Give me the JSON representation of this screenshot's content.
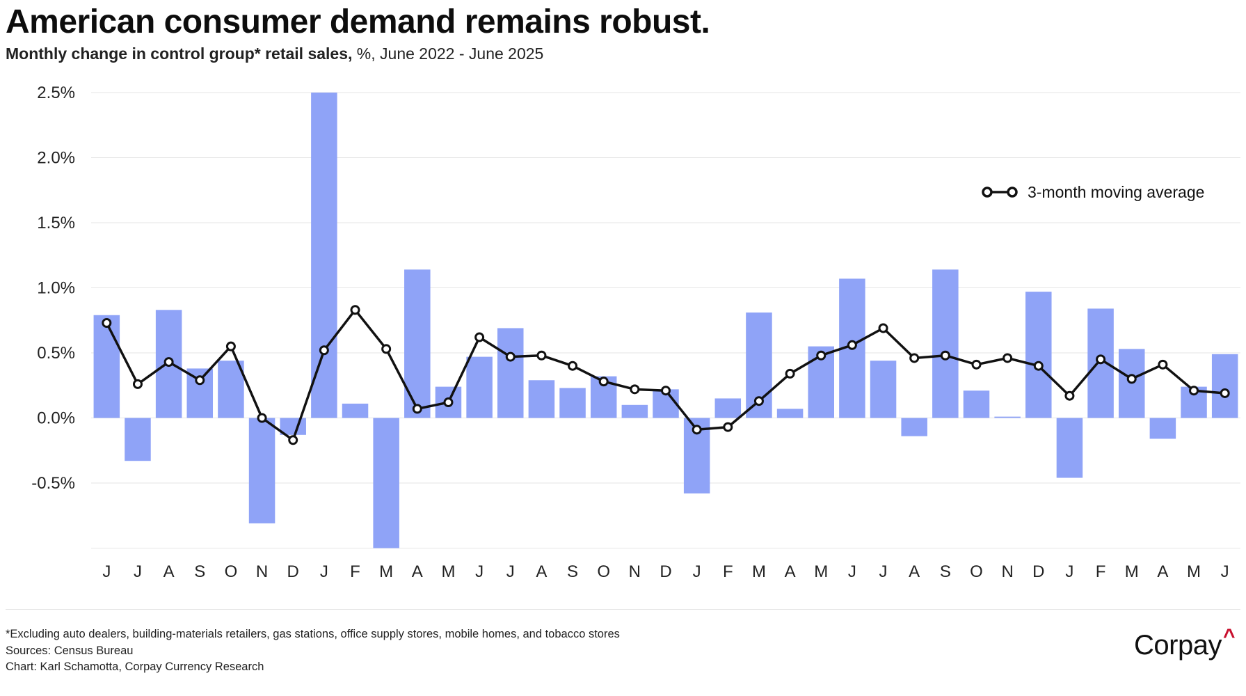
{
  "title": "American consumer demand remains robust.",
  "subtitle_bold": "Monthly change in control group* retail sales,",
  "subtitle_rest": " %, June 2022 - June 2025",
  "legend_label": "3-month moving average",
  "footnotes": [
    "*Excluding auto dealers, building-materials retailers, gas stations, office supply stores, mobile homes, and tobacco stores",
    "Sources: Census Bureau",
    "Chart: Karl Schamotta, Corpay Currency Research"
  ],
  "logo_text": "Corpay",
  "logo_mark": "^",
  "colors": {
    "bar": "#8fa3f7",
    "line": "#111111",
    "grid": "#e6e6e6",
    "logo_accent": "#c8102e"
  },
  "chart_data": {
    "type": "bar",
    "categories": [
      "J",
      "J",
      "A",
      "S",
      "O",
      "N",
      "D",
      "J",
      "F",
      "M",
      "A",
      "M",
      "J",
      "J",
      "A",
      "S",
      "O",
      "N",
      "D",
      "J",
      "F",
      "M",
      "A",
      "M",
      "J",
      "J",
      "A",
      "S",
      "O",
      "N",
      "D",
      "J",
      "F",
      "M",
      "A",
      "M",
      "J"
    ],
    "ylim": [
      -1.0,
      2.5
    ],
    "yticks": [
      2.5,
      2.0,
      1.5,
      1.0,
      0.5,
      0.0,
      -0.5
    ],
    "ytick_labels": [
      "2.5%",
      "2.0%",
      "1.5%",
      "1.0%",
      "0.5%",
      "0.0%",
      "-0.5%"
    ],
    "grid": true,
    "legend": "top-right",
    "series": [
      {
        "type": "bar",
        "values": [
          0.79,
          -0.33,
          0.83,
          0.38,
          0.44,
          -0.81,
          -0.13,
          2.5,
          0.11,
          -1.0,
          1.14,
          0.24,
          0.47,
          0.69,
          0.29,
          0.23,
          0.32,
          0.1,
          0.22,
          -0.58,
          0.15,
          0.81,
          0.07,
          0.55,
          1.07,
          0.44,
          -0.14,
          1.14,
          0.21,
          0.01,
          0.97,
          -0.46,
          0.84,
          0.53,
          -0.16,
          0.24,
          0.49
        ]
      },
      {
        "type": "line",
        "name": "3-month moving average",
        "values": [
          0.73,
          0.26,
          0.43,
          0.29,
          0.55,
          0.0,
          -0.17,
          0.52,
          0.83,
          0.53,
          0.07,
          0.12,
          0.62,
          0.47,
          0.48,
          0.4,
          0.28,
          0.22,
          0.21,
          -0.09,
          -0.07,
          0.13,
          0.34,
          0.48,
          0.56,
          0.69,
          0.46,
          0.48,
          0.41,
          0.46,
          0.4,
          0.17,
          0.45,
          0.3,
          0.41,
          0.21,
          0.19
        ]
      }
    ]
  }
}
